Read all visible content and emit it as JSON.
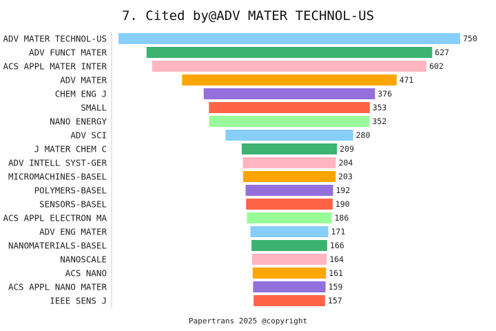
{
  "chart_data": {
    "type": "bar",
    "orientation": "horizontal",
    "style": "centered-funnel",
    "title": "7. Cited by@ADV MATER TECHNOL-US",
    "categories": [
      "ADV MATER TECHNOL-US",
      "ADV FUNCT MATER",
      "ACS APPL MATER INTER",
      "ADV MATER",
      "CHEM ENG J",
      "SMALL",
      "NANO ENERGY",
      "ADV SCI",
      "J MATER CHEM C",
      "ADV INTELL SYST-GER",
      "MICROMACHINES-BASEL",
      "POLYMERS-BASEL",
      "SENSORS-BASEL",
      "ACS APPL ELECTRON MA",
      "ADV ENG MATER",
      "NANOMATERIALS-BASEL",
      "NANOSCALE",
      "ACS NANO",
      "ACS APPL NANO MATER",
      "IEEE SENS J"
    ],
    "values": [
      750,
      627,
      602,
      471,
      376,
      353,
      352,
      280,
      209,
      204,
      203,
      192,
      190,
      186,
      171,
      166,
      164,
      161,
      159,
      157
    ],
    "colors": [
      "#87CEFA",
      "#3CB371",
      "#FFB6C1",
      "#FFA500",
      "#9370DB",
      "#FF6347",
      "#98FB98"
    ],
    "grid": false,
    "legend": "none"
  },
  "footer": "Papertrans 2025 @copyright"
}
